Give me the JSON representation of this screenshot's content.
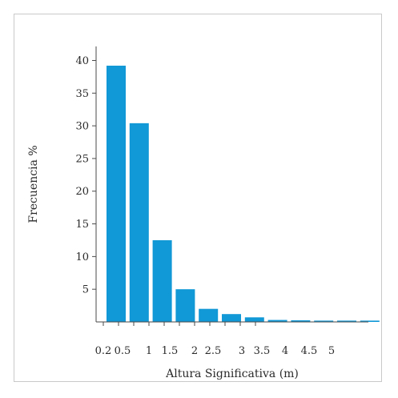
{
  "chart_data": {
    "type": "bar",
    "categories": [
      "0.2",
      "0.5",
      "1",
      "1.5",
      "2",
      "2.5",
      "3",
      "3.5",
      "4",
      "4.5",
      "5",
      ""
    ],
    "values": [
      39.2,
      30.4,
      12.5,
      5.0,
      2.0,
      1.2,
      0.7,
      0.3,
      0.25,
      0.2,
      0.2,
      0.2
    ],
    "xticks": [
      "0.2",
      "0.5",
      "1",
      "1.5",
      "2",
      "2.5",
      "3",
      "3.5",
      "4",
      "4.5",
      "5"
    ],
    "yticks": [
      5,
      10,
      15,
      20,
      25,
      30,
      35,
      40
    ],
    "xlabel": "Altura Significativa (m)",
    "ylabel": "Frecuencia %",
    "ylim": [
      0,
      43
    ],
    "bar_color": "#1198d6",
    "axis_color": "#4a4a4a",
    "grid": false
  }
}
